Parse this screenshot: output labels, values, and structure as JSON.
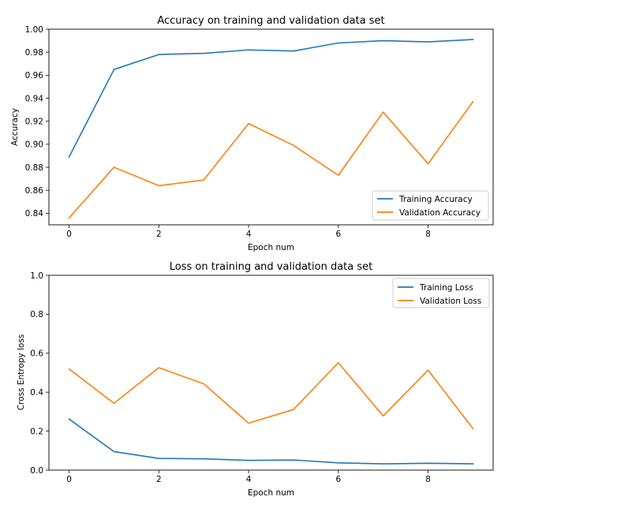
{
  "chart_data": [
    {
      "type": "line",
      "title": "Accuracy on training and validation data set",
      "xlabel": "Epoch num",
      "ylabel": "Accuracy",
      "x": [
        0,
        1,
        2,
        3,
        4,
        5,
        6,
        7,
        8,
        9
      ],
      "xlim": [
        -0.45,
        9.45
      ],
      "ylim": [
        0.83,
        1.0
      ],
      "xticks": [
        0,
        2,
        4,
        6,
        8
      ],
      "xtick_labels": [
        "0",
        "2",
        "4",
        "6",
        "8"
      ],
      "yticks": [
        0.84,
        0.86,
        0.88,
        0.9,
        0.92,
        0.94,
        0.96,
        0.98,
        1.0
      ],
      "ytick_labels": [
        "0.84",
        "0.86",
        "0.88",
        "0.90",
        "0.92",
        "0.94",
        "0.96",
        "0.98",
        "1.00"
      ],
      "legend_position": "lower-right",
      "grid": false,
      "series": [
        {
          "name": "Training Accuracy",
          "color": "#1f77b4",
          "values": [
            0.889,
            0.965,
            0.978,
            0.979,
            0.982,
            0.981,
            0.988,
            0.99,
            0.989,
            0.991
          ]
        },
        {
          "name": "Validation Accuracy",
          "color": "#ff7f0e",
          "values": [
            0.836,
            0.88,
            0.864,
            0.869,
            0.918,
            0.899,
            0.873,
            0.928,
            0.883,
            0.937
          ]
        }
      ]
    },
    {
      "type": "line",
      "title": "Loss on training and validation data set",
      "xlabel": "Epoch num",
      "ylabel": "Cross Entropy loss",
      "x": [
        0,
        1,
        2,
        3,
        4,
        5,
        6,
        7,
        8,
        9
      ],
      "xlim": [
        -0.45,
        9.45
      ],
      "ylim": [
        0.0,
        1.0
      ],
      "xticks": [
        0,
        2,
        4,
        6,
        8
      ],
      "xtick_labels": [
        "0",
        "2",
        "4",
        "6",
        "8"
      ],
      "yticks": [
        0.0,
        0.2,
        0.4,
        0.6,
        0.8,
        1.0
      ],
      "ytick_labels": [
        "0.0",
        "0.2",
        "0.4",
        "0.6",
        "0.8",
        "1.0"
      ],
      "legend_position": "upper-right",
      "grid": false,
      "series": [
        {
          "name": "Training Loss",
          "color": "#1f77b4",
          "values": [
            0.262,
            0.095,
            0.06,
            0.058,
            0.05,
            0.052,
            0.037,
            0.032,
            0.035,
            0.032
          ]
        },
        {
          "name": "Validation Loss",
          "color": "#ff7f0e",
          "values": [
            0.519,
            0.343,
            0.526,
            0.443,
            0.241,
            0.311,
            0.551,
            0.278,
            0.513,
            0.213
          ]
        }
      ]
    }
  ]
}
